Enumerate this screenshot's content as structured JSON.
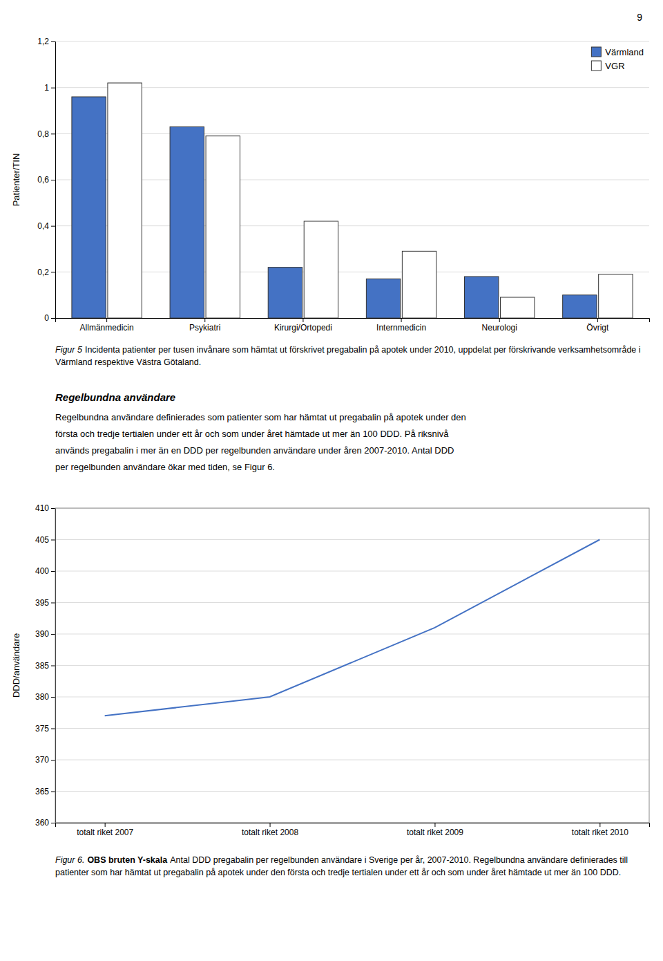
{
  "page_number": "9",
  "section_title": "Regelbundna användare",
  "section_body": [
    "Regelbundna användare definierades som patienter som har hämtat ut pregabalin på apotek under den",
    "första och tredje tertialen under ett år och som under året hämtade ut mer än 100 DDD. På riksnivå",
    "används pregabalin i mer än en DDD per regelbunden användare under åren 2007-2010. Antal DDD",
    "per regelbunden användare ökar med tiden, se Figur 6."
  ],
  "chart_data": [
    {
      "type": "bar",
      "ylabel": "Patienter/TIN",
      "categories": [
        "Allmänmedicin",
        "Psykiatri",
        "Kirurgi/Ortopedi",
        "Internmedicin",
        "Neurologi",
        "Övrigt"
      ],
      "series": [
        {
          "name": "Värmland",
          "color": "#4472C4",
          "values": [
            0.96,
            0.83,
            0.22,
            0.17,
            0.18,
            0.1
          ]
        },
        {
          "name": "VGR",
          "color": "#FFFFFF",
          "values": [
            1.02,
            0.79,
            0.42,
            0.29,
            0.09,
            0.19
          ]
        }
      ],
      "ylim": [
        0,
        1.2
      ],
      "yticks": [
        0,
        {
          "value": 0.2,
          "label": "0,2"
        },
        {
          "value": 0.4,
          "label": "0,4"
        },
        {
          "value": 0.6,
          "label": "0,6"
        },
        {
          "value": 0.8,
          "label": "0,8"
        },
        1,
        {
          "value": 1.2,
          "label": "1,2"
        }
      ],
      "grid": true,
      "legend": "upper-right",
      "caption": [
        "Figur 5",
        "Incidenta patienter per tusen invånare som hämtat ut förskrivet pregabalin på apotek under 2010, uppdelat per förskrivande verksamhetsområde i Värmland respektive Västra Götaland."
      ]
    },
    {
      "type": "line",
      "ylabel": "DDD/användare",
      "categories": [
        "totalt riket 2007",
        "totalt riket 2008",
        "totalt riket 2009",
        "totalt riket 2010"
      ],
      "values": [
        377,
        380,
        391,
        405
      ],
      "color": "#4472C4",
      "ylim": [
        360,
        410
      ],
      "yticks": [
        360,
        365,
        370,
        375,
        380,
        385,
        390,
        395,
        400,
        405,
        410
      ],
      "grid": true,
      "caption": [
        "Figur 6.",
        "OBS bruten Y-skala",
        "Antal DDD pregabalin per regelbunden användare i Sverige per år, 2007-2010. Regelbundna användare definierades till patienter som har hämtat ut pregabalin på apotek under den första och tredje tertialen under ett år och som under året hämtade ut mer än 100 DDD."
      ]
    }
  ]
}
